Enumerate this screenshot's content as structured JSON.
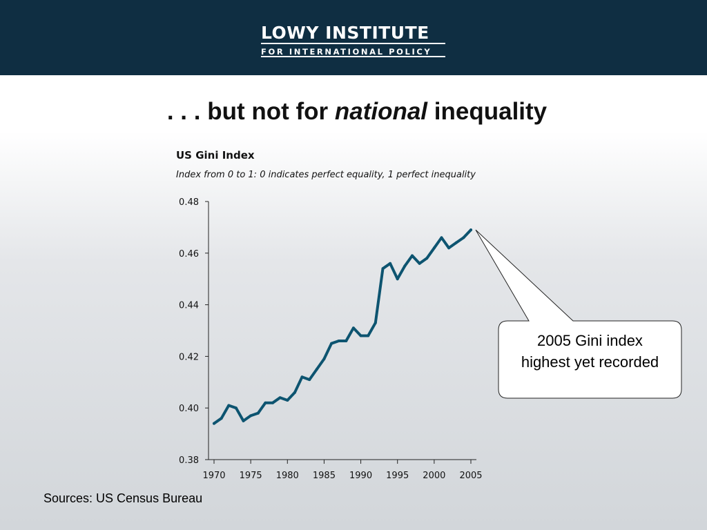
{
  "header": {
    "logo_line1": "LOWY INSTITUTE",
    "logo_line2": "FOR INTERNATIONAL POLICY"
  },
  "slide": {
    "title_prefix": ". . . but not for ",
    "title_emph": "national",
    "title_suffix": " inequality"
  },
  "callout": {
    "line1": "2005 Gini index",
    "line2": "highest yet recorded"
  },
  "sources": "Sources: US Census Bureau",
  "colors": {
    "header_bg": "#0f2e42",
    "series_line": "#0d5470"
  },
  "chart_data": {
    "type": "line",
    "title": "US Gini Index",
    "subtitle": "Index from 0 to 1: 0 indicates perfect equality, 1 perfect inequality",
    "xlabel": "",
    "ylabel": "",
    "xlim": [
      1970,
      2005
    ],
    "ylim": [
      0.38,
      0.48
    ],
    "yticks": [
      "0.48",
      "0.46",
      "0.44",
      "0.42",
      "0.40",
      "0.38"
    ],
    "xticks": [
      "1970",
      "1975",
      "1980",
      "1985",
      "1990",
      "1995",
      "2000",
      "2005"
    ],
    "grid": false,
    "series": [
      {
        "x": [
          1970,
          1971,
          1972,
          1973,
          1974,
          1975,
          1976,
          1977,
          1978,
          1979,
          1980,
          1981,
          1982,
          1983,
          1984,
          1985,
          1986,
          1987,
          1988,
          1989,
          1990,
          1991,
          1992,
          1993,
          1994,
          1995,
          1996,
          1997,
          1998,
          1999,
          2000,
          2001,
          2002,
          2003,
          2004,
          2005
        ],
        "values": [
          0.394,
          0.396,
          0.401,
          0.4,
          0.395,
          0.397,
          0.398,
          0.402,
          0.402,
          0.404,
          0.403,
          0.406,
          0.412,
          0.411,
          0.415,
          0.419,
          0.425,
          0.426,
          0.426,
          0.431,
          0.428,
          0.428,
          0.433,
          0.454,
          0.456,
          0.45,
          0.455,
          0.459,
          0.456,
          0.458,
          0.462,
          0.466,
          0.462,
          0.464,
          0.466,
          0.469
        ]
      }
    ]
  }
}
